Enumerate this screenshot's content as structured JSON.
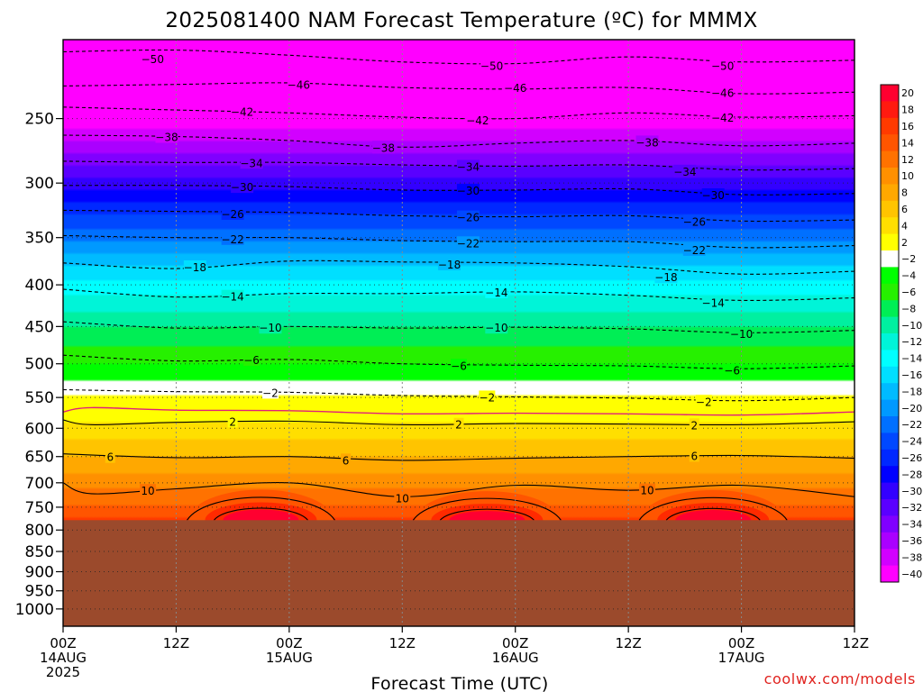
{
  "chart_data": {
    "type": "heatmap",
    "title": "2025081400 NAM Forecast Temperature (ºC) for MMMX",
    "xlabel": "Forecast Time (UTC)",
    "ylabel": "",
    "credit": "coolwx.com/models",
    "y_axis": {
      "scale": "log",
      "range": [
        1050,
        200
      ],
      "ticks": [
        250,
        300,
        350,
        400,
        450,
        500,
        550,
        600,
        650,
        700,
        750,
        800,
        850,
        900,
        950,
        1000
      ]
    },
    "x_axis": {
      "range_hours": [
        0,
        84
      ],
      "ticks": [
        {
          "h": 0,
          "label": "00Z",
          "day": "14AUG",
          "year": "2025"
        },
        {
          "h": 12,
          "label": "12Z"
        },
        {
          "h": 24,
          "label": "00Z",
          "day": "15AUG"
        },
        {
          "h": 36,
          "label": "12Z"
        },
        {
          "h": 48,
          "label": "00Z",
          "day": "16AUG"
        },
        {
          "h": 60,
          "label": "12Z"
        },
        {
          "h": 72,
          "label": "00Z",
          "day": "17AUG"
        },
        {
          "h": 84,
          "label": "12Z"
        }
      ]
    },
    "grid": true,
    "terrain_top_hpa": 778,
    "terrain_color": "#9b4a2c",
    "colorbar": {
      "placement": "right",
      "levels": [
        20,
        18,
        16,
        14,
        12,
        10,
        8,
        6,
        4,
        2,
        -2,
        -4,
        -6,
        -8,
        -10,
        -12,
        -14,
        -16,
        -18,
        -20,
        -22,
        -24,
        -26,
        -28,
        -30,
        -32,
        -34,
        -36,
        -38,
        -40
      ],
      "colors": [
        "#ff0030",
        "#ff1a10",
        "#ff3a00",
        "#ff5500",
        "#ff7200",
        "#ff9000",
        "#ffa800",
        "#ffc400",
        "#ffdf00",
        "#ffff00",
        "#ffffff",
        "#00ff00",
        "#26f000",
        "#00ee55",
        "#00f0a0",
        "#00f4d8",
        "#00ffff",
        "#00dfff",
        "#00bbff",
        "#0099ff",
        "#0070ff",
        "#0048ff",
        "#0028ff",
        "#0000ff",
        "#3300ff",
        "#5a00ff",
        "#8000ff",
        "#aa00ff",
        "#d200ff",
        "#ff00ff"
      ]
    },
    "series": [
      {
        "isotherm": -50,
        "dashed": true,
        "labels": [
          [
            9.5,
            211
          ],
          [
            45.5,
            215
          ],
          [
            70,
            215
          ]
        ],
        "p": [
          [
            0,
            207
          ],
          [
            12,
            206
          ],
          [
            24,
            209
          ],
          [
            36,
            213
          ],
          [
            48,
            214
          ],
          [
            60,
            210
          ],
          [
            72,
            213
          ],
          [
            84,
            212
          ]
        ]
      },
      {
        "isotherm": -46,
        "dashed": true,
        "labels": [
          [
            25,
            227
          ],
          [
            48,
            229
          ],
          [
            70,
            232
          ]
        ],
        "p": [
          [
            0,
            228
          ],
          [
            12,
            227
          ],
          [
            24,
            226
          ],
          [
            36,
            229
          ],
          [
            48,
            230
          ],
          [
            60,
            229
          ],
          [
            72,
            233
          ],
          [
            84,
            232
          ]
        ]
      },
      {
        "isotherm": -42,
        "dashed": true,
        "labels": [
          [
            19,
            245
          ],
          [
            44,
            251
          ],
          [
            70,
            249
          ]
        ],
        "p": [
          [
            0,
            242
          ],
          [
            12,
            244
          ],
          [
            24,
            246
          ],
          [
            36,
            249
          ],
          [
            48,
            250
          ],
          [
            60,
            246
          ],
          [
            72,
            249
          ],
          [
            84,
            248
          ]
        ]
      },
      {
        "isotherm": -38,
        "dashed": true,
        "labels": [
          [
            11,
            263
          ],
          [
            34,
            271
          ],
          [
            62,
            267
          ]
        ],
        "p": [
          [
            0,
            262
          ],
          [
            12,
            263
          ],
          [
            24,
            266
          ],
          [
            36,
            271
          ],
          [
            48,
            268
          ],
          [
            60,
            266
          ],
          [
            72,
            270
          ],
          [
            84,
            268
          ]
        ]
      },
      {
        "isotherm": -34,
        "dashed": true,
        "labels": [
          [
            20,
            283
          ],
          [
            43,
            286
          ],
          [
            66,
            290
          ]
        ],
        "p": [
          [
            0,
            282
          ],
          [
            12,
            283
          ],
          [
            24,
            283
          ],
          [
            36,
            285
          ],
          [
            48,
            286
          ],
          [
            60,
            285
          ],
          [
            72,
            289
          ],
          [
            84,
            288
          ]
        ]
      },
      {
        "isotherm": -30,
        "dashed": true,
        "labels": [
          [
            19,
            303
          ],
          [
            43,
            306
          ],
          [
            69,
            310
          ]
        ],
        "p": [
          [
            0,
            302
          ],
          [
            12,
            302
          ],
          [
            24,
            303
          ],
          [
            36,
            306
          ],
          [
            48,
            306
          ],
          [
            60,
            305
          ],
          [
            72,
            310
          ],
          [
            84,
            309
          ]
        ]
      },
      {
        "isotherm": -26,
        "dashed": true,
        "labels": [
          [
            18,
            327
          ],
          [
            43,
            330
          ],
          [
            67,
            334
          ]
        ],
        "p": [
          [
            0,
            324
          ],
          [
            12,
            325
          ],
          [
            24,
            326
          ],
          [
            36,
            329
          ],
          [
            48,
            330
          ],
          [
            60,
            329
          ],
          [
            72,
            334
          ],
          [
            84,
            333
          ]
        ]
      },
      {
        "isotherm": -22,
        "dashed": true,
        "labels": [
          [
            18,
            351
          ],
          [
            43,
            355
          ],
          [
            67,
            362
          ]
        ],
        "p": [
          [
            0,
            348
          ],
          [
            12,
            350
          ],
          [
            24,
            350
          ],
          [
            36,
            353
          ],
          [
            48,
            354
          ],
          [
            60,
            354
          ],
          [
            72,
            360
          ],
          [
            84,
            358
          ]
        ]
      },
      {
        "isotherm": -18,
        "dashed": true,
        "labels": [
          [
            14,
            380
          ],
          [
            41,
            377
          ],
          [
            64,
            391
          ]
        ],
        "p": [
          [
            0,
            376
          ],
          [
            12,
            382
          ],
          [
            24,
            374
          ],
          [
            36,
            375
          ],
          [
            48,
            376
          ],
          [
            60,
            380
          ],
          [
            72,
            388
          ],
          [
            84,
            385
          ]
        ]
      },
      {
        "isotherm": -14,
        "dashed": true,
        "labels": [
          [
            18,
            413
          ],
          [
            46,
            408
          ],
          [
            69,
            420
          ]
        ],
        "p": [
          [
            0,
            405
          ],
          [
            12,
            414
          ],
          [
            24,
            410
          ],
          [
            36,
            410
          ],
          [
            48,
            408
          ],
          [
            60,
            412
          ],
          [
            72,
            418
          ],
          [
            84,
            415
          ]
        ]
      },
      {
        "isotherm": -10,
        "dashed": true,
        "labels": [
          [
            22,
            451
          ],
          [
            46,
            451
          ],
          [
            72,
            459
          ]
        ],
        "p": [
          [
            0,
            444
          ],
          [
            12,
            452
          ],
          [
            24,
            450
          ],
          [
            36,
            452
          ],
          [
            48,
            451
          ],
          [
            60,
            453
          ],
          [
            72,
            458
          ],
          [
            84,
            455
          ]
        ]
      },
      {
        "isotherm": -6,
        "dashed": true,
        "labels": [
          [
            20,
            494
          ],
          [
            42,
            502
          ],
          [
            71,
            509
          ]
        ],
        "p": [
          [
            0,
            488
          ],
          [
            12,
            496
          ],
          [
            24,
            494
          ],
          [
            36,
            500
          ],
          [
            48,
            502
          ],
          [
            60,
            503
          ],
          [
            72,
            507
          ],
          [
            84,
            503
          ]
        ]
      },
      {
        "isotherm": -2,
        "dashed": true,
        "labels": [
          [
            22,
            542
          ],
          [
            45,
            549
          ],
          [
            68,
            556
          ]
        ],
        "p": [
          [
            0,
            538
          ],
          [
            12,
            541
          ],
          [
            24,
            542
          ],
          [
            36,
            547
          ],
          [
            48,
            549
          ],
          [
            60,
            551
          ],
          [
            72,
            555
          ],
          [
            84,
            550
          ]
        ]
      },
      {
        "isotherm": 0,
        "dashed": false,
        "magenta": true,
        "labels": [],
        "p": [
          [
            0,
            573
          ],
          [
            3,
            566
          ],
          [
            12,
            570
          ],
          [
            24,
            571
          ],
          [
            36,
            576
          ],
          [
            48,
            575
          ],
          [
            60,
            576
          ],
          [
            72,
            578
          ],
          [
            84,
            573
          ]
        ]
      },
      {
        "isotherm": 2,
        "dashed": false,
        "labels": [
          [
            18,
            588
          ],
          [
            42,
            593
          ],
          [
            67,
            594
          ]
        ],
        "p": [
          [
            0,
            586
          ],
          [
            3,
            594
          ],
          [
            12,
            590
          ],
          [
            24,
            588
          ],
          [
            36,
            594
          ],
          [
            48,
            592
          ],
          [
            60,
            593
          ],
          [
            72,
            594
          ],
          [
            84,
            589
          ]
        ]
      },
      {
        "isotherm": 6,
        "dashed": false,
        "labels": [
          [
            5,
            650
          ],
          [
            30,
            656
          ],
          [
            67,
            648
          ]
        ],
        "p": [
          [
            0,
            645
          ],
          [
            12,
            652
          ],
          [
            24,
            650
          ],
          [
            36,
            657
          ],
          [
            48,
            653
          ],
          [
            60,
            650
          ],
          [
            72,
            648
          ],
          [
            84,
            653
          ]
        ]
      },
      {
        "isotherm": 10,
        "dashed": false,
        "labels": [
          [
            9,
            715
          ],
          [
            36,
            730
          ],
          [
            62,
            714
          ]
        ],
        "p": [
          [
            0,
            700
          ],
          [
            3,
            722
          ],
          [
            12,
            712
          ],
          [
            24,
            700
          ],
          [
            36,
            728
          ],
          [
            48,
            705
          ],
          [
            60,
            715
          ],
          [
            72,
            705
          ],
          [
            84,
            728
          ]
        ]
      }
    ],
    "warm_cores": [
      {
        "h": 21,
        "top_hpa": 755,
        "max": 20
      },
      {
        "h": 45,
        "top_hpa": 758,
        "max": 20
      },
      {
        "h": 69,
        "top_hpa": 756,
        "max": 20
      }
    ]
  }
}
